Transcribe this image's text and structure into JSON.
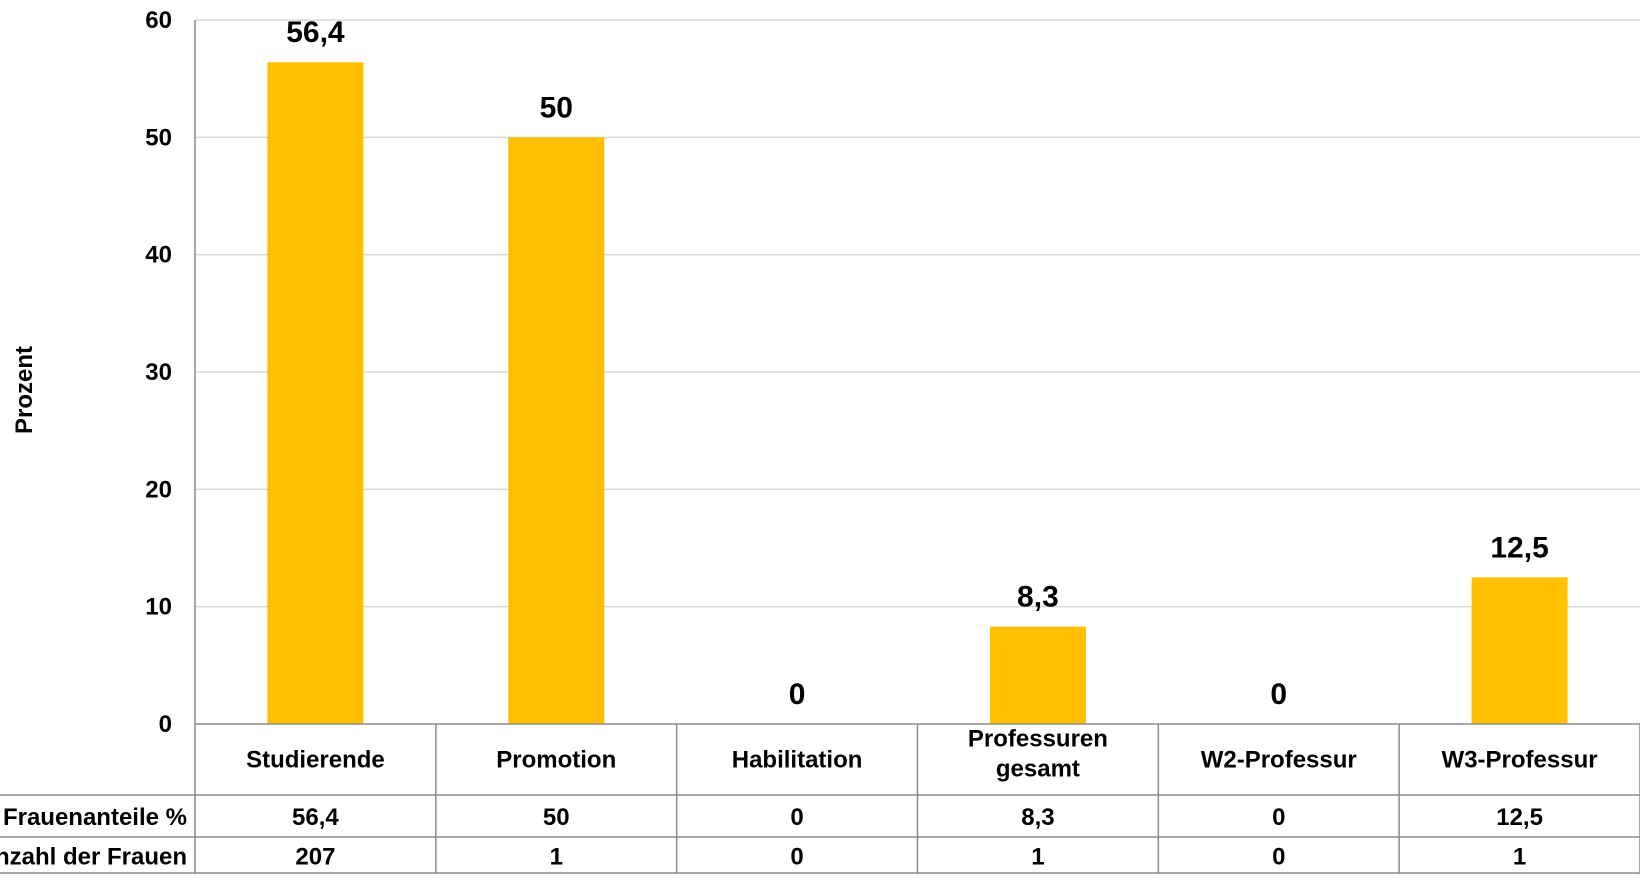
{
  "chart_data": {
    "type": "bar",
    "title": "",
    "xlabel": "",
    "ylabel": "Prozent",
    "ylim": [
      0,
      60
    ],
    "yticks": [
      0,
      10,
      20,
      30,
      40,
      50,
      60
    ],
    "grid": true,
    "categories": [
      "Studierende",
      "Promotion",
      "Habilitation",
      "Professuren gesamt",
      "W2-Professur",
      "W3-Professur"
    ],
    "series": [
      {
        "name": "Frauenanteile %",
        "values": [
          56.4,
          50,
          0,
          8.3,
          0,
          12.5
        ],
        "color": "#FFC000"
      }
    ],
    "data_labels": [
      "56,4",
      "50",
      "0",
      "8,3",
      "0",
      "12,5"
    ],
    "data_table": {
      "rows": [
        {
          "label": "Frauenanteile %",
          "cells": [
            "56,4",
            "50",
            "0",
            "8,3",
            "0",
            "12,5"
          ]
        },
        {
          "label": "Anzahl der Frauen",
          "cells": [
            "207",
            "1",
            "0",
            "1",
            "0",
            "1"
          ]
        }
      ]
    }
  }
}
